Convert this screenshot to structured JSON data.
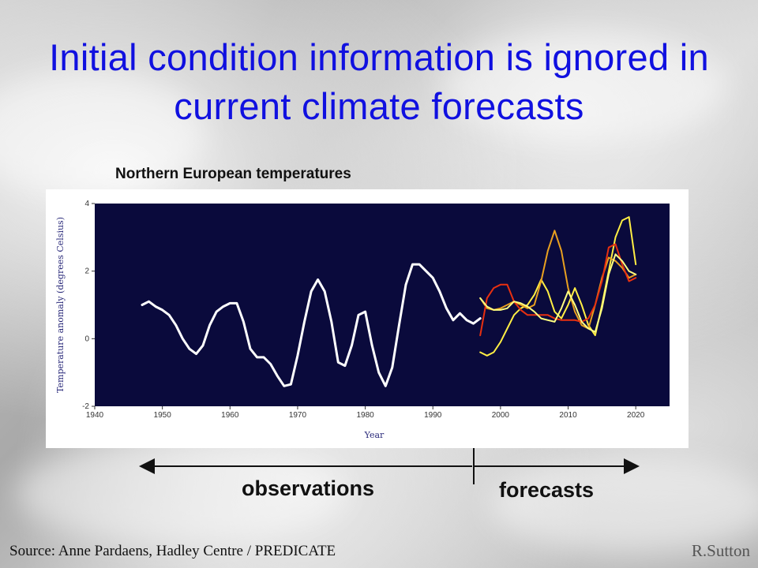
{
  "slide": {
    "title": "Initial condition information is ignored in current climate forecasts",
    "chart_title": "Northern European temperatures",
    "observations_label": "observations",
    "forecasts_label": "forecasts",
    "source": "Source: Anne Pardaens, Hadley Centre / PREDICATE",
    "credit": "R.Sutton"
  },
  "chart_data": {
    "type": "line",
    "xlabel": "Year",
    "ylabel": "Temperature anomaly (degrees Celsius)",
    "xlim": [
      1940,
      2025
    ],
    "ylim": [
      -2,
      4
    ],
    "xticks": [
      1940,
      1950,
      1960,
      1970,
      1980,
      1990,
      2000,
      2010,
      2020
    ],
    "yticks": [
      -2,
      0,
      2,
      4
    ],
    "plot_background": "#0a0a3c",
    "series": [
      {
        "color": "#ffffff",
        "x": [
          1947,
          1948,
          1949,
          1950,
          1951,
          1952,
          1953,
          1954,
          1955,
          1956,
          1957,
          1958,
          1959,
          1960,
          1961,
          1962,
          1963,
          1964,
          1965,
          1966,
          1967,
          1968,
          1969,
          1970,
          1971,
          1972,
          1973,
          1974,
          1975,
          1976,
          1977,
          1978,
          1979,
          1980,
          1981,
          1982,
          1983,
          1984,
          1985,
          1986,
          1987,
          1988,
          1989,
          1990,
          1991,
          1992,
          1993,
          1994,
          1995,
          1996,
          1997
        ],
        "y": [
          1.0,
          1.1,
          0.95,
          0.85,
          0.7,
          0.4,
          0.0,
          -0.3,
          -0.45,
          -0.2,
          0.4,
          0.8,
          0.95,
          1.05,
          1.05,
          0.5,
          -0.3,
          -0.55,
          -0.55,
          -0.75,
          -1.1,
          -1.4,
          -1.35,
          -0.5,
          0.5,
          1.4,
          1.75,
          1.4,
          0.5,
          -0.7,
          -0.8,
          -0.2,
          0.7,
          0.8,
          -0.2,
          -1.0,
          -1.4,
          -0.85,
          0.4,
          1.6,
          2.2,
          2.2,
          2.0,
          1.8,
          1.4,
          0.9,
          0.55,
          0.75,
          0.55,
          0.45,
          0.6
        ]
      },
      {
        "color": "#ffee44",
        "x": [
          1997,
          1998,
          1999,
          2000,
          2001,
          2002,
          2003,
          2004,
          2005,
          2006,
          2007,
          2008,
          2009,
          2010,
          2011,
          2012,
          2013,
          2014,
          2015,
          2016,
          2017,
          2018,
          2019,
          2020
        ],
        "y": [
          -0.4,
          -0.5,
          -0.4,
          -0.1,
          0.3,
          0.7,
          0.9,
          1.0,
          1.3,
          1.75,
          1.4,
          0.8,
          0.6,
          1.0,
          1.5,
          1.0,
          0.4,
          0.1,
          1.0,
          2.0,
          3.0,
          3.5,
          3.6,
          2.2
        ]
      },
      {
        "color": "#e8a020",
        "x": [
          1997,
          1998,
          1999,
          2000,
          2001,
          2002,
          2003,
          2004,
          2005,
          2006,
          2007,
          2008,
          2009,
          2010,
          2011,
          2012,
          2013,
          2014,
          2015,
          2016,
          2017,
          2018,
          2019,
          2020
        ],
        "y": [
          1.2,
          0.9,
          0.85,
          0.9,
          1.0,
          1.1,
          1.0,
          0.9,
          1.0,
          1.7,
          2.6,
          3.2,
          2.6,
          1.5,
          0.8,
          0.4,
          0.3,
          1.0,
          1.8,
          2.4,
          2.3,
          2.1,
          1.8,
          1.9
        ]
      },
      {
        "color": "#e83010",
        "x": [
          1997,
          1998,
          1999,
          2000,
          2001,
          2002,
          2003,
          2004,
          2005,
          2006,
          2007,
          2008,
          2009,
          2010,
          2011,
          2012,
          2013,
          2014,
          2015,
          2016,
          2017,
          2018,
          2019,
          2020
        ],
        "y": [
          0.1,
          1.2,
          1.5,
          1.6,
          1.6,
          1.1,
          0.85,
          0.7,
          0.7,
          0.7,
          0.7,
          0.6,
          0.55,
          0.55,
          0.55,
          0.5,
          0.6,
          1.0,
          1.7,
          2.7,
          2.8,
          2.2,
          1.7,
          1.8
        ]
      },
      {
        "color": "#ffff80",
        "x": [
          1997,
          1998,
          1999,
          2000,
          2001,
          2002,
          2003,
          2004,
          2005,
          2006,
          2007,
          2008,
          2009,
          2010,
          2011,
          2012,
          2013,
          2014,
          2015,
          2016,
          2017,
          2018,
          2019,
          2020
        ],
        "y": [
          1.2,
          0.95,
          0.85,
          0.85,
          0.9,
          1.1,
          1.05,
          0.95,
          0.8,
          0.6,
          0.55,
          0.5,
          0.9,
          1.4,
          1.0,
          0.5,
          0.3,
          0.2,
          0.9,
          1.9,
          2.5,
          2.3,
          2.0,
          1.9
        ]
      }
    ]
  }
}
